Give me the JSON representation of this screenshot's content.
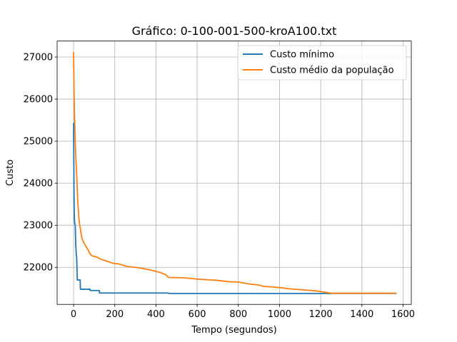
{
  "chart_data": {
    "type": "line",
    "title": "Gráfico: 0-100-001-500-kroA100.txt",
    "xlabel": "Tempo (segundos)",
    "ylabel": "Custo",
    "xlim": [
      -80,
      1640
    ],
    "ylim": [
      21120,
      27380
    ],
    "xticks": [
      0,
      200,
      400,
      600,
      800,
      1000,
      1200,
      1400,
      1600
    ],
    "yticks": [
      22000,
      23000,
      24000,
      25000,
      26000,
      27000
    ],
    "grid": true,
    "legend_position": "upper right",
    "series": [
      {
        "name": "Custo mínimo",
        "color": "#1f77b4",
        "points": [
          [
            0,
            25420
          ],
          [
            1,
            24600
          ],
          [
            2,
            23800
          ],
          [
            3,
            23300
          ],
          [
            5,
            23050
          ],
          [
            8,
            23000
          ],
          [
            10,
            22600
          ],
          [
            13,
            22300
          ],
          [
            15,
            22230
          ],
          [
            18,
            21700
          ],
          [
            32,
            21700
          ],
          [
            33,
            21480
          ],
          [
            80,
            21480
          ],
          [
            81,
            21450
          ],
          [
            125,
            21450
          ],
          [
            126,
            21390
          ],
          [
            460,
            21390
          ],
          [
            461,
            21380
          ],
          [
            1565,
            21380
          ]
        ]
      },
      {
        "name": "Custo médio da população",
        "color": "#ff7f0e",
        "points": [
          [
            0,
            27100
          ],
          [
            2,
            26200
          ],
          [
            5,
            25500
          ],
          [
            10,
            24700
          ],
          [
            15,
            24200
          ],
          [
            20,
            23600
          ],
          [
            25,
            23200
          ],
          [
            30,
            23000
          ],
          [
            35,
            22850
          ],
          [
            40,
            22700
          ],
          [
            50,
            22580
          ],
          [
            60,
            22500
          ],
          [
            70,
            22420
          ],
          [
            80,
            22320
          ],
          [
            90,
            22270
          ],
          [
            110,
            22250
          ],
          [
            130,
            22200
          ],
          [
            160,
            22150
          ],
          [
            190,
            22100
          ],
          [
            220,
            22080
          ],
          [
            260,
            22020
          ],
          [
            300,
            22000
          ],
          [
            340,
            21970
          ],
          [
            380,
            21930
          ],
          [
            420,
            21880
          ],
          [
            450,
            21820
          ],
          [
            460,
            21760
          ],
          [
            540,
            21750
          ],
          [
            600,
            21720
          ],
          [
            700,
            21690
          ],
          [
            750,
            21660
          ],
          [
            800,
            21650
          ],
          [
            860,
            21600
          ],
          [
            900,
            21580
          ],
          [
            920,
            21550
          ],
          [
            1000,
            21520
          ],
          [
            1050,
            21490
          ],
          [
            1100,
            21470
          ],
          [
            1180,
            21440
          ],
          [
            1220,
            21410
          ],
          [
            1250,
            21385
          ],
          [
            1565,
            21385
          ]
        ]
      }
    ]
  }
}
